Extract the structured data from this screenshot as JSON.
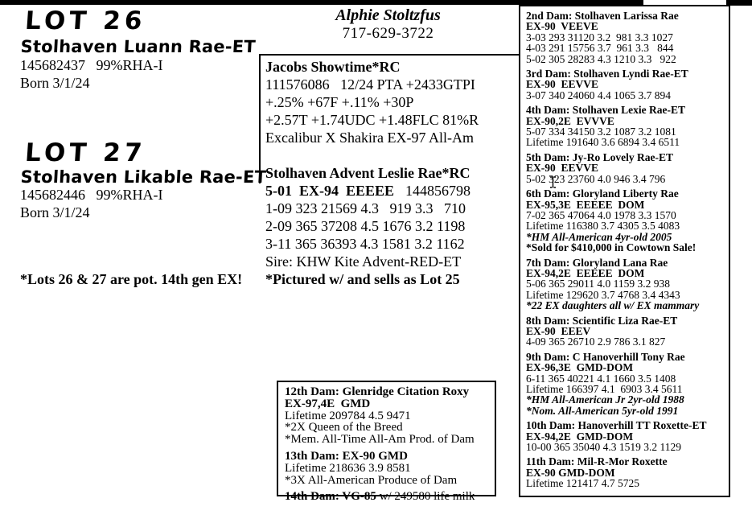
{
  "ink_color": "#000000",
  "cursor": {
    "icon": "text-cursor-icon"
  },
  "lots": [
    {
      "lot_label": "LOT 26",
      "name": "Stolhaven Luann Rae-ET",
      "reg": "145682437   99%RHA-I",
      "born": "Born 3/1/24"
    },
    {
      "lot_label": "LOT 27",
      "name": "Stolhaven Likable Rae-ET",
      "reg": "145682446   99%RHA-I",
      "born": "Born 3/1/24"
    }
  ],
  "footnote": "*Lots 26 & 27 are pot. 14th gen EX!",
  "contact": {
    "name": "Alphie Stoltzfus",
    "phone": "717-629-3722"
  },
  "sire_block": {
    "title": "Jacobs Showtime*RC",
    "lines": [
      "111576086   12/24 PTA +2433GTPI",
      "+.25% +67F +.11% +30P",
      "+2.57T +1.74UDC +1.48FLC 81%R",
      "Excalibur X Shakira EX-97 All-Am"
    ]
  },
  "dam_block": {
    "title": "Stolhaven Advent Leslie Rae*RC",
    "score_bold": "5-01  EX-94  EEEEE",
    "score_reg": "144856798",
    "lines": [
      "1-09 323 21569 4.3   919 3.3   710",
      "2-09 365 37208 4.5 1676 3.2 1198",
      "3-11 365 36393 4.3 1581 3.2 1162",
      "Sire: KHW Kite Advent-RED-ET"
    ],
    "note": "*Pictured w/ and sells as Lot 25"
  },
  "mid_box": {
    "sections": [
      {
        "title": "12th Dam: Glenridge Citation Roxy",
        "score": "EX-97,4E  GMD",
        "lines": [
          {
            "t": "Lifetime 209784 4.5 9471",
            "s": "r"
          },
          {
            "t": "*2X Queen of the Breed",
            "s": "r"
          },
          {
            "t": "*Mem. All-Time All-Am Prod. of Dam",
            "s": "r"
          }
        ]
      },
      {
        "title": "13th Dam: EX-90 GMD",
        "lines": [
          {
            "t": "Lifetime 218636 3.9 8581",
            "s": "r"
          },
          {
            "t": "*3X All-American Produce of Dam",
            "s": "r"
          }
        ]
      },
      {
        "title": "14th Dam: VG-85",
        "title_suffix": " w/ 249580 life milk",
        "lines": []
      }
    ]
  },
  "right_box": {
    "sections": [
      {
        "title": "2nd Dam: Stolhaven Larissa Rae",
        "score": "EX-90  VEEVE",
        "lines": [
          {
            "t": "3-03 293 31120 3.2  981 3.3 1027",
            "s": "r"
          },
          {
            "t": "4-03 291 15756 3.7  961 3.3   844",
            "s": "r"
          },
          {
            "t": "5-02 305 28283 4.3 1210 3.3   922",
            "s": "r"
          }
        ]
      },
      {
        "title": "3rd Dam: Stolhaven Lyndi Rae-ET",
        "score": "EX-90  EEVVE",
        "lines": [
          {
            "t": "3-07 340 24060 4.4 1065 3.7 894",
            "s": "r"
          }
        ]
      },
      {
        "title": "4th Dam: Stolhaven Lexie Rae-ET",
        "score": "EX-90,2E  EVVVE",
        "lines": [
          {
            "t": "5-07 334 34150 3.2 1087 3.2 1081",
            "s": "r"
          },
          {
            "t": "Lifetime 191640 3.6 6894 3.4 6511",
            "s": "r"
          }
        ]
      },
      {
        "title": "5th Dam: Jy-Ro Lovely Rae-ET",
        "score": "EX-90  EEVVE",
        "lines": [
          {
            "t": "5-02 323 23760 4.0 946 3.4 796",
            "s": "r"
          }
        ]
      },
      {
        "title": "6th Dam: Gloryland Liberty Rae",
        "score": "EX-95,3E  EEEEE  DOM",
        "lines": [
          {
            "t": "7-02 365 47064 4.0 1978 3.3 1570",
            "s": "r"
          },
          {
            "t": "Lifetime 116380 3.7 4305 3.5 4083",
            "s": "r"
          },
          {
            "t": "*HM All-American 4yr-old 2005",
            "s": "bi"
          },
          {
            "t": "*Sold for $410,000 in Cowtown Sale!",
            "s": "b"
          }
        ]
      },
      {
        "title": "7th Dam: Gloryland Lana Rae",
        "score": "EX-94,2E  EEEEE  DOM",
        "lines": [
          {
            "t": "5-06 365 29011 4.0 1159 3.2 938",
            "s": "r"
          },
          {
            "t": "Lifetime 129620 3.7 4768 3.4 4343",
            "s": "r"
          },
          {
            "t": "*22 EX daughters all w/ EX mammary",
            "s": "bi"
          }
        ]
      },
      {
        "title": "8th Dam: Scientific Liza Rae-ET",
        "score": "EX-90  EEEV",
        "lines": [
          {
            "t": "4-09 365 26710 2.9 786 3.1 827",
            "s": "r"
          }
        ]
      },
      {
        "title": "9th Dam: C Hanoverhill Tony Rae",
        "score": "EX-96,3E  GMD-DOM",
        "lines": [
          {
            "t": "6-11 365 40221 4.1 1660 3.5 1408",
            "s": "r"
          },
          {
            "t": "Lifetime 166397 4.1  6903 3.4 5611",
            "s": "r"
          },
          {
            "t": "*HM All-American Jr 2yr-old 1988",
            "s": "bi"
          },
          {
            "t": "*Nom. All-American 5yr-old 1991",
            "s": "bi"
          }
        ]
      },
      {
        "title": "10th Dam: Hanoverhill TT Roxette-ET",
        "score": "EX-94,2E  GMD-DOM",
        "lines": [
          {
            "t": "10-00 365 35040 4.3 1519 3.2 1129",
            "s": "r"
          }
        ]
      },
      {
        "title": "11th Dam: Mil-R-Mor Roxette",
        "score": "EX-90 GMD-DOM",
        "lines": [
          {
            "t": "Lifetime 121417 4.7 5725",
            "s": "r"
          }
        ]
      }
    ]
  }
}
